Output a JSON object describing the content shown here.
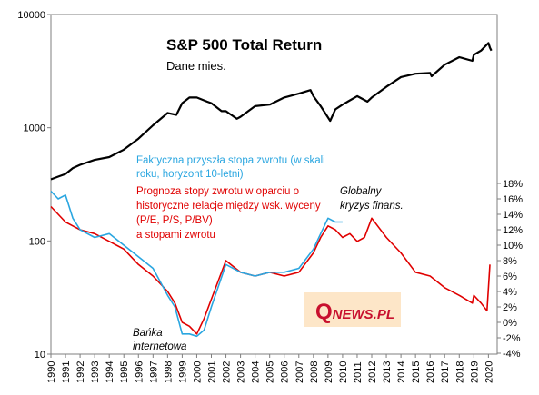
{
  "chart_data": {
    "type": "line",
    "title": "S&P 500 Total Return",
    "subtitle": "Dane mies.",
    "xlabel": "",
    "ylabel_left": "",
    "ylabel_right": "",
    "left_axis": {
      "scale": "log",
      "ylim": [
        10,
        10000
      ],
      "ticks": [
        10,
        100,
        1000,
        10000
      ],
      "tick_labels": [
        "10",
        "100",
        "1000",
        "10000"
      ]
    },
    "right_axis": {
      "scale": "linear",
      "ylim": [
        -4,
        18
      ],
      "ticks": [
        -4,
        -2,
        0,
        2,
        4,
        6,
        8,
        10,
        12,
        14,
        16,
        18
      ],
      "tick_labels": [
        "-4%",
        "-2%",
        "0%",
        "2%",
        "4%",
        "6%",
        "8%",
        "10%",
        "12%",
        "14%",
        "16%",
        "18%"
      ]
    },
    "x_axis": {
      "xlim": [
        1990,
        2020.6
      ],
      "tick_labels": [
        "1990",
        "1991",
        "1992",
        "1993",
        "1994",
        "1995",
        "1996",
        "1997",
        "1998",
        "1999",
        "2000",
        "2001",
        "2002",
        "2003",
        "2004",
        "2005",
        "2006",
        "2007",
        "2008",
        "2009",
        "2010",
        "2011",
        "2012",
        "2013",
        "2014",
        "2015",
        "2016",
        "2017",
        "2018",
        "2019",
        "2020"
      ]
    },
    "grid": false,
    "series": [
      {
        "axis": "left",
        "color": "#000000",
        "x": [
          1990,
          1990.5,
          1991,
          1991.5,
          1992,
          1993,
          1994,
          1995,
          1996,
          1997,
          1998,
          1998.6,
          1999,
          1999.5,
          2000,
          2000.7,
          2001,
          2001.7,
          2002,
          2002.75,
          2003,
          2004,
          2005,
          2006,
          2007,
          2007.8,
          2008,
          2008.5,
          2009.15,
          2009.5,
          2010,
          2011,
          2011.7,
          2012,
          2013,
          2014,
          2015,
          2016,
          2016.1,
          2017,
          2018,
          2018.9,
          2019,
          2019.5,
          2020,
          2020.1,
          2020.2
        ],
        "values": [
          350,
          370,
          390,
          440,
          470,
          520,
          550,
          640,
          800,
          1050,
          1350,
          1300,
          1650,
          1850,
          1850,
          1700,
          1650,
          1400,
          1400,
          1200,
          1250,
          1550,
          1600,
          1850,
          2000,
          2150,
          1900,
          1550,
          1150,
          1450,
          1600,
          1900,
          1700,
          1850,
          2300,
          2800,
          3000,
          3050,
          2850,
          3600,
          4200,
          3900,
          4400,
          4800,
          5600,
          5100,
          4800
        ]
      },
      {
        "axis": "right",
        "color": "#2aa6e0",
        "x": [
          1990,
          1990.5,
          1991,
          1991.5,
          1992,
          1993,
          1994,
          1995,
          1996,
          1997,
          1998,
          1998.5,
          1999,
          1999.5,
          2000,
          2000.5,
          2001,
          2002,
          2003,
          2004,
          2005,
          2006,
          2007,
          2008,
          2008.5,
          2009,
          2009.5,
          2010
        ],
        "values": [
          17.0,
          16.0,
          16.5,
          13.5,
          12.0,
          11.0,
          11.5,
          10.0,
          8.5,
          7.0,
          3.5,
          2.0,
          -1.5,
          -1.5,
          -1.8,
          -1.0,
          2.0,
          7.5,
          6.5,
          6.0,
          6.5,
          6.5,
          7.0,
          9.5,
          11.5,
          13.5,
          13.0,
          13.0
        ]
      },
      {
        "axis": "right",
        "color": "#e00000",
        "x": [
          1990,
          1990.5,
          1991,
          1991.5,
          1992,
          1993,
          1994,
          1995,
          1996,
          1997,
          1998,
          1998.5,
          1999,
          1999.5,
          2000,
          2000.5,
          2001,
          2002,
          2003,
          2004,
          2005,
          2006,
          2007,
          2008,
          2008.5,
          2009,
          2009.5,
          2010,
          2010.5,
          2011,
          2011.5,
          2012,
          2013,
          2014,
          2015,
          2016,
          2017,
          2018,
          2018.9,
          2019,
          2019.5,
          2019.9,
          2020.1
        ],
        "values": [
          15.0,
          14.0,
          13.0,
          12.5,
          12.0,
          11.5,
          10.5,
          9.5,
          7.5,
          6.0,
          4.0,
          2.5,
          0.0,
          -0.5,
          -1.5,
          0.5,
          3.0,
          8.0,
          6.5,
          6.0,
          6.5,
          6.0,
          6.5,
          9.0,
          11.0,
          12.5,
          12.0,
          11.0,
          11.5,
          10.5,
          11.0,
          13.5,
          11.0,
          9.0,
          6.5,
          6.0,
          4.5,
          3.5,
          2.5,
          3.5,
          2.5,
          1.5,
          7.5
        ]
      }
    ],
    "annotations": {
      "blue_lines": [
        "Faktyczna przyszła stopa zwrotu (w skali",
        "roku, horyzont 10-letni)"
      ],
      "red_lines": [
        "Prognoza stopy zwrotu w oparciu o",
        "historyczne relacje między wsk. wyceny",
        "(P/E, P/S, P/BV)",
        "a stopami zwrotu"
      ],
      "bubble_lines": [
        "Bańka",
        "internetowa"
      ],
      "crisis_lines": [
        "Globalny",
        "kryzys finans."
      ]
    }
  },
  "logo": {
    "big_letter": "Q",
    "rest": "NEWS.PL",
    "bg_color": "#fde6c8",
    "text_color": "#c8102e"
  }
}
